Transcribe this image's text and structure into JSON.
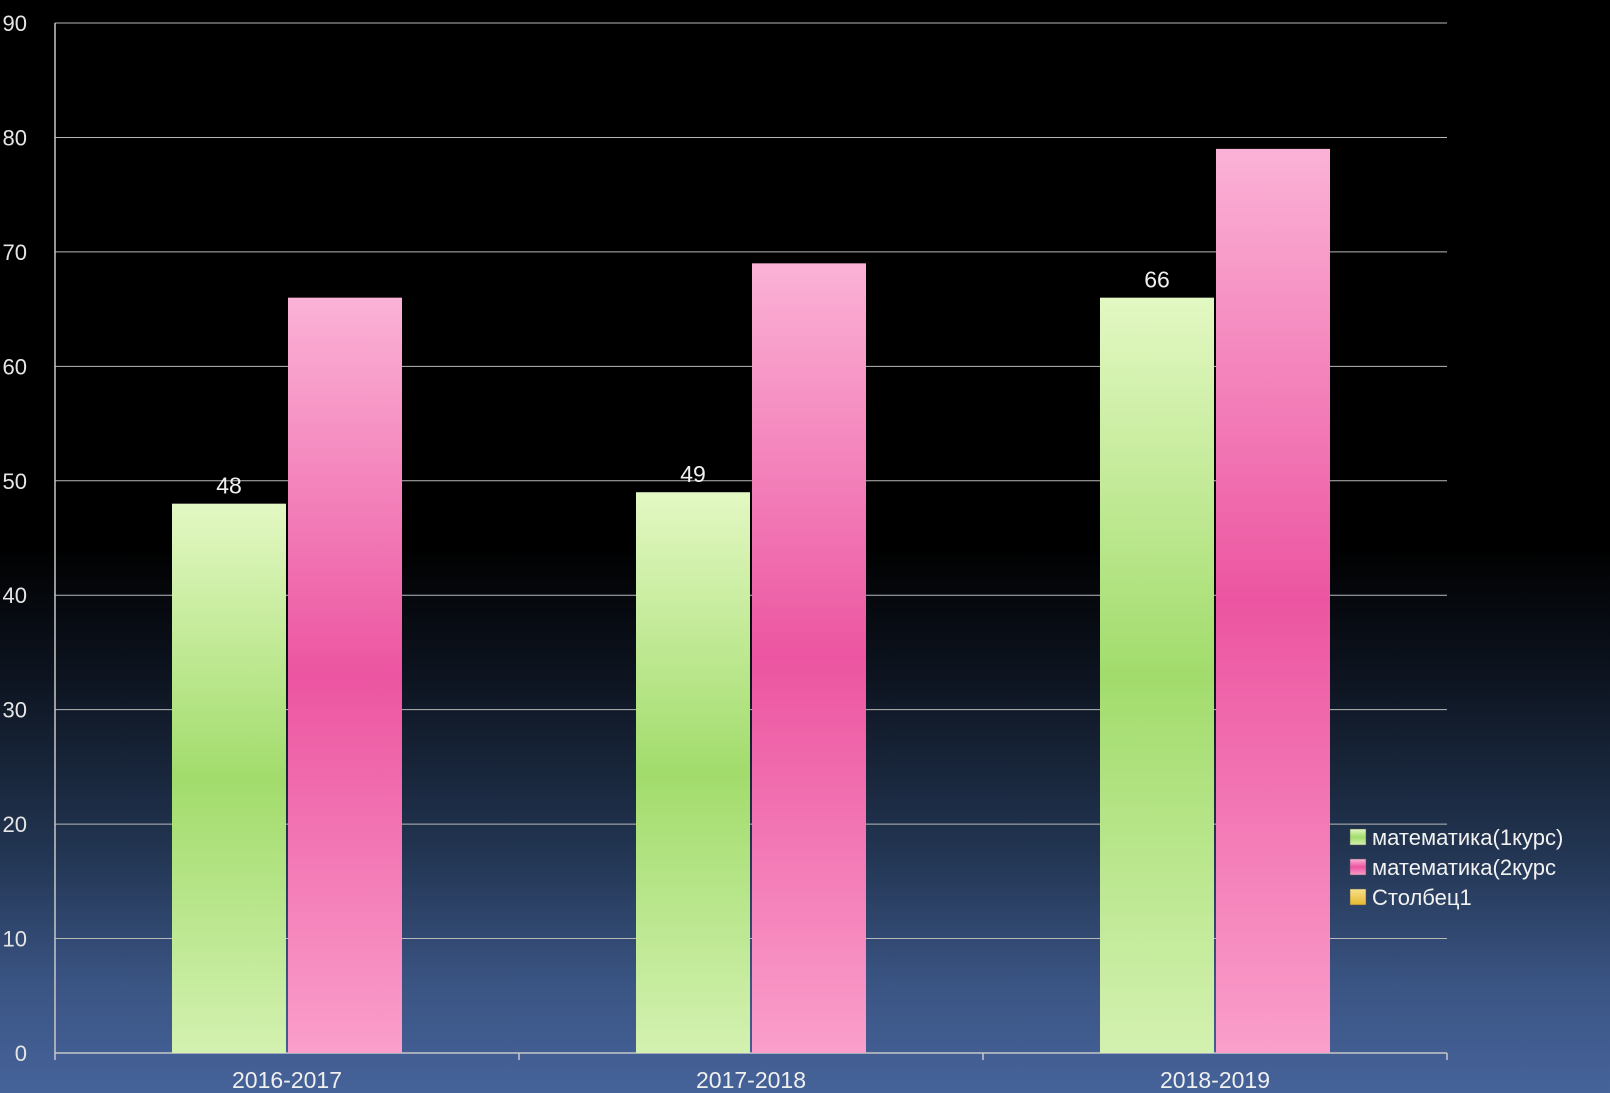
{
  "chart_data": {
    "type": "bar",
    "categories": [
      "2016-2017",
      "2017-2018",
      "2018-2019"
    ],
    "series": [
      {
        "name": "математика(1курс)",
        "values": [
          48,
          49,
          66
        ],
        "color": "#9fdc6a",
        "labels": [
          "48",
          "49",
          "66"
        ]
      },
      {
        "name": "математика(2курс",
        "values": [
          66,
          69,
          79
        ],
        "color": "#ef5aa5",
        "labels": [
          "",
          "",
          ""
        ]
      },
      {
        "name": "Столбец1",
        "values": [
          0,
          0,
          0
        ],
        "color": "#f0c848",
        "labels": [
          "",
          "",
          ""
        ]
      }
    ],
    "ylim": [
      0,
      90
    ],
    "yticks": [
      "0",
      "10",
      "20",
      "30",
      "40",
      "50",
      "60",
      "70",
      "80",
      "90"
    ],
    "grid": true,
    "legend_position": "right"
  }
}
